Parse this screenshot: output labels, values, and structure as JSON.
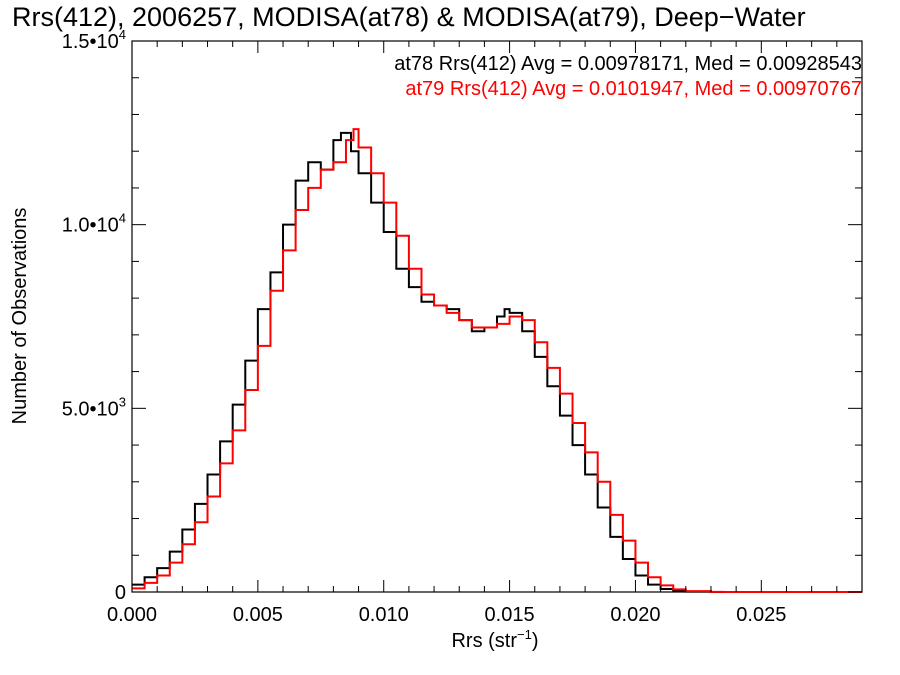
{
  "title": "Rrs(412), 2006257, MODISA(at78) & MODISA(at79), Deep−Water",
  "chart_data": {
    "type": "line",
    "drawstyle": "steps",
    "xlabel": "Rrs (str",
    "xlabel_sup": "−1",
    "xlabel_close": ")",
    "ylabel": "Number of Observations",
    "xlim": [
      0.0,
      0.029
    ],
    "ylim": [
      0,
      15000
    ],
    "grid": false,
    "legend_placement": "top-right",
    "x_ticks": [
      {
        "value": 0.0,
        "label": "0.000"
      },
      {
        "value": 0.005,
        "label": "0.005"
      },
      {
        "value": 0.01,
        "label": "0.010"
      },
      {
        "value": 0.015,
        "label": "0.015"
      },
      {
        "value": 0.02,
        "label": "0.020"
      },
      {
        "value": 0.025,
        "label": "0.025"
      }
    ],
    "y_ticks": [
      {
        "value": 0,
        "label": "0",
        "exp": ""
      },
      {
        "value": 5000,
        "label": "5.0•10",
        "exp": "3"
      },
      {
        "value": 10000,
        "label": "1.0•10",
        "exp": "4"
      },
      {
        "value": 15000,
        "label": "1.5•10",
        "exp": "4"
      }
    ],
    "series": [
      {
        "name": "at78",
        "color": "#000000",
        "legend": "at78 Rrs(412) Avg = 0.00978171, Med = 0.00928543",
        "points": [
          [
            0.0,
            200
          ],
          [
            0.0005,
            400
          ],
          [
            0.001,
            650
          ],
          [
            0.0015,
            1100
          ],
          [
            0.002,
            1700
          ],
          [
            0.0025,
            2400
          ],
          [
            0.003,
            3200
          ],
          [
            0.0035,
            4100
          ],
          [
            0.004,
            5100
          ],
          [
            0.0045,
            6300
          ],
          [
            0.005,
            7700
          ],
          [
            0.0055,
            8700
          ],
          [
            0.006,
            10000
          ],
          [
            0.0065,
            11200
          ],
          [
            0.007,
            11700
          ],
          [
            0.0075,
            11500
          ],
          [
            0.008,
            12300
          ],
          [
            0.0083,
            12500
          ],
          [
            0.0087,
            12000
          ],
          [
            0.009,
            11400
          ],
          [
            0.0095,
            10600
          ],
          [
            0.01,
            9800
          ],
          [
            0.0105,
            8800
          ],
          [
            0.011,
            8300
          ],
          [
            0.0115,
            7900
          ],
          [
            0.012,
            7800
          ],
          [
            0.0125,
            7700
          ],
          [
            0.013,
            7400
          ],
          [
            0.0135,
            7100
          ],
          [
            0.014,
            7200
          ],
          [
            0.0145,
            7500
          ],
          [
            0.0148,
            7700
          ],
          [
            0.015,
            7600
          ],
          [
            0.0155,
            7100
          ],
          [
            0.016,
            6400
          ],
          [
            0.0165,
            5600
          ],
          [
            0.017,
            4800
          ],
          [
            0.0175,
            4000
          ],
          [
            0.018,
            3200
          ],
          [
            0.0185,
            2300
          ],
          [
            0.019,
            1500
          ],
          [
            0.0195,
            900
          ],
          [
            0.02,
            450
          ],
          [
            0.0205,
            200
          ],
          [
            0.021,
            80
          ],
          [
            0.0215,
            30
          ],
          [
            0.022,
            10
          ],
          [
            0.023,
            0
          ],
          [
            0.029,
            0
          ]
        ]
      },
      {
        "name": "at79",
        "color": "#ff0000",
        "legend": "at79 Rrs(412) Avg = 0.0101947, Med = 0.00970767",
        "points": [
          [
            0.0,
            100
          ],
          [
            0.0005,
            250
          ],
          [
            0.001,
            450
          ],
          [
            0.0015,
            800
          ],
          [
            0.002,
            1300
          ],
          [
            0.0025,
            1900
          ],
          [
            0.003,
            2600
          ],
          [
            0.0035,
            3500
          ],
          [
            0.004,
            4400
          ],
          [
            0.0045,
            5500
          ],
          [
            0.005,
            6700
          ],
          [
            0.0055,
            8200
          ],
          [
            0.006,
            9300
          ],
          [
            0.0065,
            10400
          ],
          [
            0.007,
            11000
          ],
          [
            0.0075,
            11500
          ],
          [
            0.008,
            11700
          ],
          [
            0.0085,
            12300
          ],
          [
            0.0088,
            12600
          ],
          [
            0.009,
            12100
          ],
          [
            0.0095,
            11400
          ],
          [
            0.01,
            10600
          ],
          [
            0.0105,
            9700
          ],
          [
            0.011,
            8800
          ],
          [
            0.0115,
            8100
          ],
          [
            0.012,
            7800
          ],
          [
            0.0125,
            7600
          ],
          [
            0.013,
            7400
          ],
          [
            0.0135,
            7200
          ],
          [
            0.014,
            7200
          ],
          [
            0.0145,
            7300
          ],
          [
            0.015,
            7500
          ],
          [
            0.0155,
            7400
          ],
          [
            0.016,
            6800
          ],
          [
            0.0165,
            6100
          ],
          [
            0.017,
            5400
          ],
          [
            0.0175,
            4600
          ],
          [
            0.018,
            3800
          ],
          [
            0.0185,
            3000
          ],
          [
            0.019,
            2100
          ],
          [
            0.0195,
            1400
          ],
          [
            0.02,
            800
          ],
          [
            0.0205,
            400
          ],
          [
            0.021,
            180
          ],
          [
            0.0215,
            70
          ],
          [
            0.022,
            25
          ],
          [
            0.023,
            5
          ],
          [
            0.0235,
            0
          ],
          [
            0.029,
            0
          ]
        ]
      }
    ]
  }
}
